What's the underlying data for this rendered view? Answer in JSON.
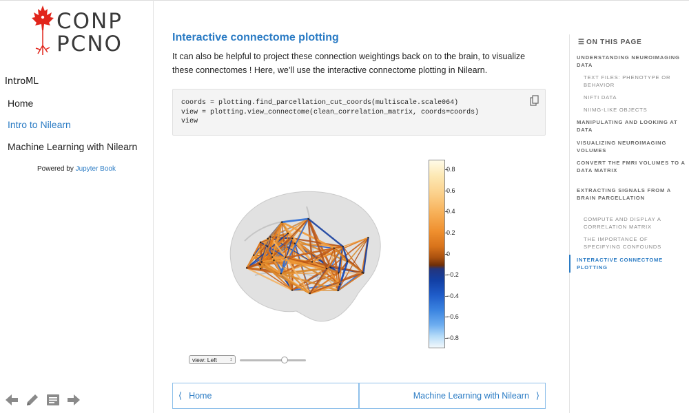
{
  "colors": {
    "accent": "#2a7bc4",
    "logo_leaf": "#e1251b"
  },
  "sidebar": {
    "logo_line1": "CONP",
    "logo_line2": "PCNO",
    "site_title": "IntroML",
    "nav": [
      {
        "label": "Home",
        "active": false
      },
      {
        "label": "Intro to Nilearn",
        "active": true
      },
      {
        "label": "Machine Learning with Nilearn",
        "active": false
      }
    ],
    "powered_prefix": "Powered by",
    "powered_link": "Jupyter Book",
    "bottom_icons": [
      "arrow-left-icon",
      "pencil-icon",
      "notes-icon",
      "arrow-right-icon"
    ]
  },
  "main": {
    "heading": "Interactive connectome plotting",
    "paragraph": "It can also be helpful to project these connection weightings back on to the brain, to visualize these connectomes ! Here, we’ll use the interactive connectome plotting in Nilearn.",
    "code": "coords = plotting.find_parcellation_cut_coords(multiscale.scale064)\nview = plotting.view_connectome(clean_correlation_matrix, coords=coords)\nview",
    "colorbar_ticks": [
      "0.8",
      "0.6",
      "0.4",
      "0.2",
      "0",
      "−0.2",
      "−0.4",
      "−0.6",
      "−0.8"
    ],
    "view_select": "view: Left",
    "slider_value": 0.7,
    "prev_label": "Home",
    "next_label": "Machine Learning with Nilearn"
  },
  "toc": {
    "heading": "ON THIS PAGE",
    "items": [
      {
        "label": "UNDERSTANDING NEUROIMAGING DATA",
        "level": 1
      },
      {
        "label": "TEXT FILES: PHENOTYPE OR BEHAVIOR",
        "level": 2
      },
      {
        "label": "NIFTI DATA",
        "level": 2
      },
      {
        "label": "NIIMG-LIKE OBJECTS",
        "level": 2
      },
      {
        "label": "MANIPULATING AND LOOKING AT DATA",
        "level": 1
      },
      {
        "label": "VISUALIZING NEUROIMAGING VOLUMES",
        "level": 1
      },
      {
        "label": "CONVERT THE FMRI VOLUMES TO A DATA MATRIX",
        "level": 1
      },
      {
        "label": "EXTRACTING SIGNALS FROM A BRAIN PARCELLATION",
        "level": 1
      },
      {
        "label": "COMPUTE AND DISPLAY A CORRELATION MATRIX",
        "level": 2
      },
      {
        "label": "THE IMPORTANCE OF SPECIFYING CONFOUNDS",
        "level": 2
      },
      {
        "label": "INTERACTIVE CONNECTOME PLOTTING",
        "level": 1,
        "active": true
      }
    ]
  }
}
